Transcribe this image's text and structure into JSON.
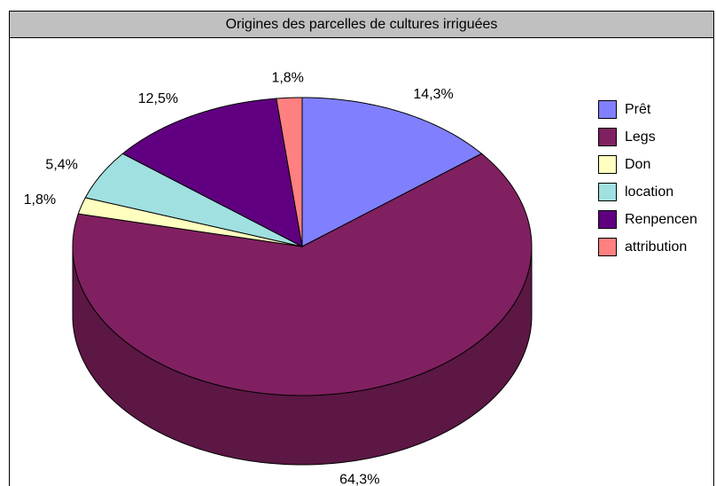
{
  "chart_data": {
    "type": "pie",
    "title": "Origines des parcelles de cultures irriguées",
    "categories": [
      "Prêt",
      "Legs",
      "Don",
      "location",
      "Renpencen",
      "attribution"
    ],
    "values": [
      14.3,
      64.3,
      1.8,
      5.4,
      12.5,
      1.8
    ],
    "value_labels": [
      "14,3%",
      "64,3%",
      "1,8%",
      "5,4%",
      "12,5%",
      "1,8%"
    ],
    "colors": [
      "#8080ff",
      "#802060",
      "#ffffc0",
      "#a0e0e0",
      "#600080",
      "#ff8080"
    ],
    "legend": "right"
  }
}
